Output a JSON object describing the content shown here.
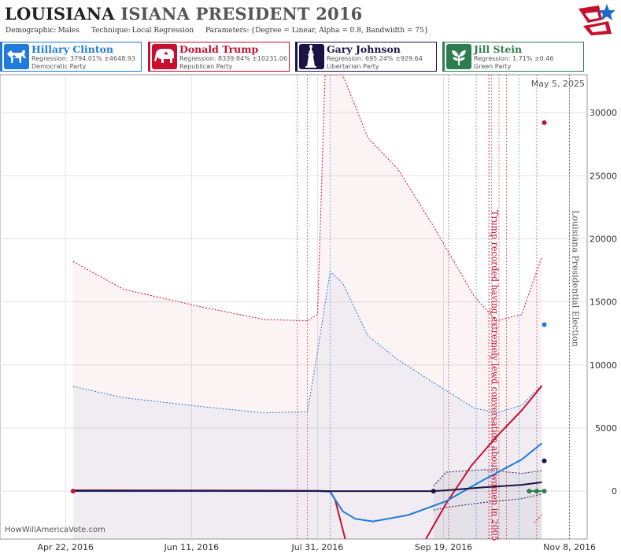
{
  "header": {
    "title_state": "LOUISIANA",
    "title_rest": "ISIANA PRESIDENT 2016",
    "params": [
      {
        "label": "Demographic:",
        "value": "Males"
      },
      {
        "label": "Technique:",
        "value": "Local Regression"
      },
      {
        "label": "Parameters:",
        "value": "{Degree = Linear, Alpha = 0.8, Bandwidth = 75}"
      }
    ]
  },
  "candidates": [
    {
      "name": "Hillary Clinton",
      "regression": "Regression: 3794.01% ±4648.93",
      "party": "Democratic Party",
      "color": "#1e7bdc",
      "emblem": "donkey-icon"
    },
    {
      "name": "Donald Trump",
      "regression": "Regression: 8339.84% ±10231.06",
      "party": "Republican Party",
      "color": "#c8102e",
      "emblem": "elephant-icon"
    },
    {
      "name": "Gary Johnson",
      "regression": "Regression: 695.24% ±929.64",
      "party": "Libertarian Party",
      "color": "#1a1446",
      "emblem": "statue-of-liberty-icon"
    },
    {
      "name": "Jill Stein",
      "regression": "Regression: 1.71% ±0.46",
      "party": "Green Party",
      "color": "#2e7d4f",
      "emblem": "leaf-icon"
    }
  ],
  "watermark": "HowWillAmericaVote.com",
  "date_stamp": "May 5, 2025",
  "chart_data": {
    "type": "line",
    "x_type": "date",
    "xlim": [
      "2016-03-27",
      "2016-11-15"
    ],
    "ylim": [
      -3800,
      33000
    ],
    "x_ticks": [
      {
        "date": "2016-04-22",
        "label": "Apr 22, 2016"
      },
      {
        "date": "2016-06-11",
        "label": "Jun 11, 2016"
      },
      {
        "date": "2016-07-31",
        "label": "Jul 31, 2016"
      },
      {
        "date": "2016-09-19",
        "label": "Sep 19, 2016"
      },
      {
        "date": "2016-11-08",
        "label": "Nov 8, 2016"
      }
    ],
    "y_ticks": [
      0,
      5000,
      10000,
      15000,
      20000,
      25000,
      30000
    ],
    "grid": true,
    "annotations": [
      {
        "date": "2016-10-07",
        "text": "Trump recorded having extremely lewd conversation about women in 2005",
        "color": "#c8102e"
      },
      {
        "date": "2016-11-08",
        "text": "Louisiana Presidential Election",
        "color": "#555555"
      }
    ],
    "poll_lines": {
      "red": [
        "2016-07-23",
        "2016-07-27",
        "2016-09-21",
        "2016-10-08",
        "2016-10-11",
        "2016-10-14",
        "2016-10-26"
      ],
      "blue": [
        "2016-08-05",
        "2016-10-02",
        "2016-10-19"
      ]
    },
    "series": [
      {
        "name": "Donald Trump",
        "color": "#c8102e",
        "x": [
          "2016-04-25",
          "2016-05-15",
          "2016-06-15",
          "2016-07-10",
          "2016-07-31",
          "2016-08-05",
          "2016-08-07",
          "2016-08-11"
        ],
        "y": [
          70,
          60,
          50,
          40,
          20,
          0,
          -700,
          -3800
        ]
      },
      {
        "name": "Donald Trump",
        "color": "#c8102e",
        "x": [
          "2016-09-12",
          "2016-09-20",
          "2016-09-30",
          "2016-10-10",
          "2016-10-20",
          "2016-10-28"
        ],
        "y": [
          -3800,
          -1000,
          2000,
          4300,
          6400,
          8340
        ]
      },
      {
        "name": "Hillary Clinton",
        "color": "#1e7bdc",
        "x": [
          "2016-04-25",
          "2016-06-15",
          "2016-07-31",
          "2016-08-05",
          "2016-08-10",
          "2016-08-15",
          "2016-08-22",
          "2016-09-05",
          "2016-09-20",
          "2016-10-05",
          "2016-10-20",
          "2016-10-28"
        ],
        "y": [
          0,
          0,
          0,
          -50,
          -1600,
          -2200,
          -2400,
          -1900,
          -800,
          900,
          2500,
          3790
        ]
      },
      {
        "name": "Gary Johnson",
        "color": "#1a1446",
        "x": [
          "2016-04-25",
          "2016-06-15",
          "2016-07-31",
          "2016-08-05",
          "2016-09-15",
          "2016-09-20",
          "2016-10-05",
          "2016-10-20",
          "2016-10-28"
        ],
        "y": [
          30,
          30,
          10,
          0,
          0,
          60,
          300,
          500,
          695
        ]
      },
      {
        "name": "Jill Stein",
        "color": "#2e7d4f",
        "x": [
          "2016-10-22",
          "2016-10-28"
        ],
        "y": [
          2,
          2
        ]
      }
    ],
    "bands": [
      {
        "name": "Donald Trump",
        "color": "#c8102e",
        "upper": {
          "x": [
            "2016-04-25",
            "2016-05-15",
            "2016-06-15",
            "2016-07-10",
            "2016-07-27",
            "2016-07-31",
            "2016-08-03",
            "2016-08-05",
            "2016-08-10",
            "2016-08-20",
            "2016-09-01",
            "2016-09-15",
            "2016-10-01",
            "2016-10-10",
            "2016-10-20",
            "2016-10-28"
          ],
          "y": [
            18200,
            16000,
            14600,
            13600,
            13500,
            14000,
            33000,
            33000,
            33000,
            28000,
            25500,
            21000,
            15500,
            13500,
            14000,
            18570
          ]
        },
        "lower": {
          "x": [
            "2016-10-25",
            "2016-10-28"
          ],
          "y": [
            -2500,
            -1900
          ]
        }
      },
      {
        "name": "Hillary Clinton",
        "color": "#1e7bdc",
        "upper": {
          "x": [
            "2016-04-25",
            "2016-05-15",
            "2016-06-15",
            "2016-07-10",
            "2016-07-27",
            "2016-07-31",
            "2016-08-05",
            "2016-08-10",
            "2016-08-20",
            "2016-09-01",
            "2016-09-15",
            "2016-10-01",
            "2016-10-10",
            "2016-10-20",
            "2016-10-28"
          ],
          "y": [
            8300,
            7400,
            6700,
            6200,
            6300,
            11000,
            17400,
            16500,
            12300,
            10400,
            8600,
            6600,
            6200,
            6800,
            8440
          ]
        }
      },
      {
        "name": "Gary Johnson",
        "color": "#1a1446",
        "upper": {
          "x": [
            "2016-09-15",
            "2016-09-20",
            "2016-10-05",
            "2016-10-20",
            "2016-10-28"
          ],
          "y": [
            400,
            1500,
            1700,
            1400,
            1620
          ]
        },
        "lower": {
          "x": [
            "2016-09-15",
            "2016-09-20",
            "2016-10-05",
            "2016-10-20",
            "2016-10-28"
          ],
          "y": [
            -1500,
            -1300,
            -900,
            -600,
            -230
          ]
        }
      }
    ],
    "points": [
      {
        "name": "Donald Trump",
        "date": "2016-04-25",
        "value": 0,
        "color": "#c8102e"
      },
      {
        "name": "Donald Trump",
        "date": "2016-10-29",
        "value": 29200,
        "color": "#c8102e"
      },
      {
        "name": "Hillary Clinton",
        "date": "2016-10-29",
        "value": 13200,
        "color": "#1e7bdc"
      },
      {
        "name": "Gary Johnson",
        "date": "2016-09-15",
        "value": 0,
        "color": "#1a1446"
      },
      {
        "name": "Gary Johnson",
        "date": "2016-10-29",
        "value": 2400,
        "color": "#1a1446"
      },
      {
        "name": "Jill Stein",
        "date": "2016-10-23",
        "value": 0,
        "color": "#2e7d4f"
      },
      {
        "name": "Jill Stein",
        "date": "2016-10-26",
        "value": 0,
        "color": "#2e7d4f"
      },
      {
        "name": "Jill Stein",
        "date": "2016-10-29",
        "value": 0,
        "color": "#2e7d4f"
      }
    ]
  }
}
